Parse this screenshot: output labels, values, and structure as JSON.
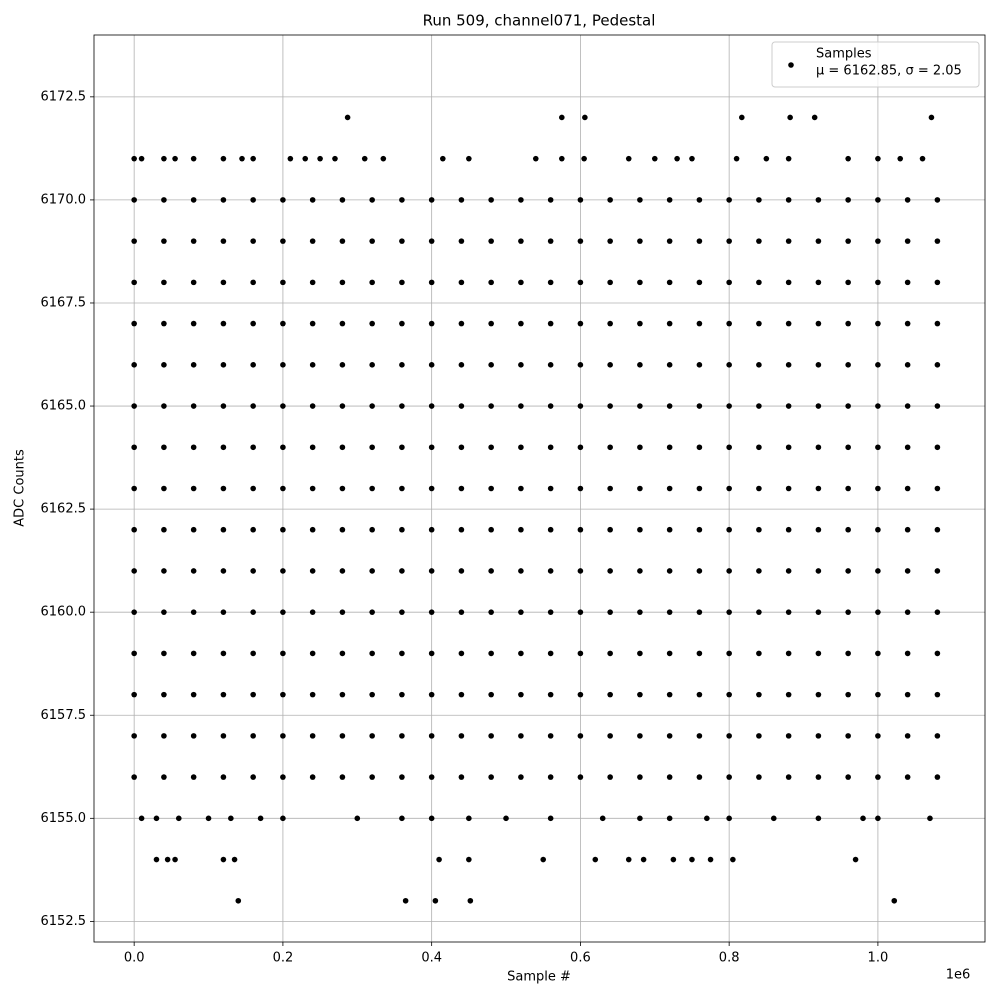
{
  "chart_data": {
    "type": "scatter",
    "title": "Run 509, channel071, Pedestal",
    "x_label": "Sample #",
    "y_label": "ADC Counts",
    "x_offset_label": "1e6",
    "legend_note": "μ = 6162.85, σ = 2.05",
    "legend": "upper right",
    "grid": true,
    "xlim": [
      -0.054,
      1.144
    ],
    "ylim": [
      6152.0,
      6174.0
    ],
    "xticks": [
      {
        "value": 0,
        "label": "0.0"
      },
      0.2,
      0.4,
      0.6,
      0.8,
      {
        "value": 1,
        "label": "1.0"
      }
    ],
    "yticks": [
      6152.5,
      {
        "value": 6155,
        "label": "6155.0"
      },
      6157.5,
      {
        "value": 6160,
        "label": "6160.0"
      },
      6162.5,
      {
        "value": 6165,
        "label": "6165.0"
      },
      6167.5,
      {
        "value": 6170,
        "label": "6170.0"
      },
      6172.5
    ],
    "series": [
      {
        "name": "Samples",
        "color": "#000000",
        "x": [
          0.287,
          0.575,
          0.606,
          0.817,
          0.882,
          0.915,
          1.072,
          0,
          0.01,
          0.04,
          0.055,
          0.08,
          0.12,
          0.145,
          0.16,
          0.21,
          0.23,
          0.25,
          0.27,
          0.31,
          0.335,
          0.415,
          0.45,
          0.54,
          0.575,
          0.605,
          0.665,
          0.7,
          0.73,
          0.75,
          0.81,
          0.85,
          0.88,
          0.96,
          1.0,
          1.03,
          1.06,
          0,
          0.04,
          0.08,
          0.12,
          0.16,
          0.2,
          0.24,
          0.28,
          0.32,
          0.36,
          0.4,
          0.44,
          0.48,
          0.52,
          0.56,
          0.6,
          0.64,
          0.68,
          0.72,
          0.76,
          0.8,
          0.84,
          0.88,
          0.92,
          0.96,
          1.0,
          1.04,
          1.08,
          0,
          0.04,
          0.08,
          0.12,
          0.16,
          0.2,
          0.24,
          0.28,
          0.32,
          0.36,
          0.4,
          0.44,
          0.48,
          0.52,
          0.56,
          0.6,
          0.64,
          0.68,
          0.72,
          0.76,
          0.8,
          0.84,
          0.88,
          0.92,
          0.96,
          1.0,
          1.04,
          1.08,
          0,
          0.04,
          0.08,
          0.12,
          0.16,
          0.2,
          0.24,
          0.28,
          0.32,
          0.36,
          0.4,
          0.44,
          0.48,
          0.52,
          0.56,
          0.6,
          0.64,
          0.68,
          0.72,
          0.76,
          0.8,
          0.84,
          0.88,
          0.92,
          0.96,
          1.0,
          1.04,
          1.08,
          0,
          0.04,
          0.08,
          0.12,
          0.16,
          0.2,
          0.24,
          0.28,
          0.32,
          0.36,
          0.4,
          0.44,
          0.48,
          0.52,
          0.56,
          0.6,
          0.64,
          0.68,
          0.72,
          0.76,
          0.8,
          0.84,
          0.88,
          0.92,
          0.96,
          1.0,
          1.04,
          1.08,
          0,
          0.04,
          0.08,
          0.12,
          0.16,
          0.2,
          0.24,
          0.28,
          0.32,
          0.36,
          0.4,
          0.44,
          0.48,
          0.52,
          0.56,
          0.6,
          0.64,
          0.68,
          0.72,
          0.76,
          0.8,
          0.84,
          0.88,
          0.92,
          0.96,
          1.0,
          1.04,
          1.08,
          0,
          0.04,
          0.08,
          0.12,
          0.16,
          0.2,
          0.24,
          0.28,
          0.32,
          0.36,
          0.4,
          0.44,
          0.48,
          0.52,
          0.56,
          0.6,
          0.64,
          0.68,
          0.72,
          0.76,
          0.8,
          0.84,
          0.88,
          0.92,
          0.96,
          1.0,
          1.04,
          1.08,
          0,
          0.04,
          0.08,
          0.12,
          0.16,
          0.2,
          0.24,
          0.28,
          0.32,
          0.36,
          0.4,
          0.44,
          0.48,
          0.52,
          0.56,
          0.6,
          0.64,
          0.68,
          0.72,
          0.76,
          0.8,
          0.84,
          0.88,
          0.92,
          0.96,
          1.0,
          1.04,
          1.08,
          0,
          0.04,
          0.08,
          0.12,
          0.16,
          0.2,
          0.24,
          0.28,
          0.32,
          0.36,
          0.4,
          0.44,
          0.48,
          0.52,
          0.56,
          0.6,
          0.64,
          0.68,
          0.72,
          0.76,
          0.8,
          0.84,
          0.88,
          0.92,
          0.96,
          1.0,
          1.04,
          1.08,
          0,
          0.04,
          0.08,
          0.12,
          0.16,
          0.2,
          0.24,
          0.28,
          0.32,
          0.36,
          0.4,
          0.44,
          0.48,
          0.52,
          0.56,
          0.6,
          0.64,
          0.68,
          0.72,
          0.76,
          0.8,
          0.84,
          0.88,
          0.92,
          0.96,
          1.0,
          1.04,
          1.08,
          0,
          0.04,
          0.08,
          0.12,
          0.16,
          0.2,
          0.24,
          0.28,
          0.32,
          0.36,
          0.4,
          0.44,
          0.48,
          0.52,
          0.56,
          0.6,
          0.64,
          0.68,
          0.72,
          0.76,
          0.8,
          0.84,
          0.88,
          0.92,
          0.96,
          1.0,
          1.04,
          1.08,
          0,
          0.04,
          0.08,
          0.12,
          0.16,
          0.2,
          0.24,
          0.28,
          0.32,
          0.36,
          0.4,
          0.44,
          0.48,
          0.52,
          0.56,
          0.6,
          0.64,
          0.68,
          0.72,
          0.76,
          0.8,
          0.84,
          0.88,
          0.92,
          0.96,
          1.0,
          1.04,
          1.08,
          0,
          0.04,
          0.08,
          0.12,
          0.16,
          0.2,
          0.24,
          0.28,
          0.32,
          0.36,
          0.4,
          0.44,
          0.48,
          0.52,
          0.56,
          0.6,
          0.64,
          0.68,
          0.72,
          0.76,
          0.8,
          0.84,
          0.88,
          0.92,
          0.96,
          1.0,
          1.04,
          1.08,
          0,
          0.04,
          0.08,
          0.12,
          0.16,
          0.2,
          0.24,
          0.28,
          0.32,
          0.36,
          0.4,
          0.44,
          0.48,
          0.52,
          0.56,
          0.6,
          0.64,
          0.68,
          0.72,
          0.76,
          0.8,
          0.84,
          0.88,
          0.92,
          0.96,
          1.0,
          1.04,
          1.08,
          0,
          0.04,
          0.08,
          0.12,
          0.16,
          0.2,
          0.24,
          0.28,
          0.32,
          0.36,
          0.4,
          0.44,
          0.48,
          0.52,
          0.56,
          0.6,
          0.64,
          0.68,
          0.72,
          0.76,
          0.8,
          0.84,
          0.88,
          0.92,
          0.96,
          1.0,
          1.04,
          1.08,
          0,
          0.04,
          0.08,
          0.12,
          0.16,
          0.2,
          0.24,
          0.28,
          0.32,
          0.36,
          0.4,
          0.44,
          0.48,
          0.52,
          0.56,
          0.6,
          0.64,
          0.68,
          0.72,
          0.76,
          0.8,
          0.84,
          0.88,
          0.92,
          0.96,
          1.0,
          1.04,
          1.08,
          0.01,
          0.03,
          0.06,
          0.1,
          0.13,
          0.17,
          0.2,
          0.3,
          0.36,
          0.4,
          0.45,
          0.5,
          0.56,
          0.63,
          0.68,
          0.72,
          0.77,
          0.8,
          0.86,
          0.92,
          0.98,
          1.0,
          1.07,
          0.03,
          0.045,
          0.055,
          0.12,
          0.135,
          0.41,
          0.45,
          0.55,
          0.62,
          0.665,
          0.685,
          0.725,
          0.75,
          0.775,
          0.805,
          0.97,
          0.14,
          0.365,
          0.405,
          0.452,
          1.022
        ],
        "values": [
          6172,
          6172,
          6172,
          6172,
          6172,
          6172,
          6172,
          6171,
          6171,
          6171,
          6171,
          6171,
          6171,
          6171,
          6171,
          6171,
          6171,
          6171,
          6171,
          6171,
          6171,
          6171,
          6171,
          6171,
          6171,
          6171,
          6171,
          6171,
          6171,
          6171,
          6171,
          6171,
          6171,
          6171,
          6171,
          6171,
          6171,
          6170,
          6170,
          6170,
          6170,
          6170,
          6170,
          6170,
          6170,
          6170,
          6170,
          6170,
          6170,
          6170,
          6170,
          6170,
          6170,
          6170,
          6170,
          6170,
          6170,
          6170,
          6170,
          6170,
          6170,
          6170,
          6170,
          6170,
          6170,
          6169,
          6169,
          6169,
          6169,
          6169,
          6169,
          6169,
          6169,
          6169,
          6169,
          6169,
          6169,
          6169,
          6169,
          6169,
          6169,
          6169,
          6169,
          6169,
          6169,
          6169,
          6169,
          6169,
          6169,
          6169,
          6169,
          6169,
          6169,
          6168,
          6168,
          6168,
          6168,
          6168,
          6168,
          6168,
          6168,
          6168,
          6168,
          6168,
          6168,
          6168,
          6168,
          6168,
          6168,
          6168,
          6168,
          6168,
          6168,
          6168,
          6168,
          6168,
          6168,
          6168,
          6168,
          6168,
          6168,
          6167,
          6167,
          6167,
          6167,
          6167,
          6167,
          6167,
          6167,
          6167,
          6167,
          6167,
          6167,
          6167,
          6167,
          6167,
          6167,
          6167,
          6167,
          6167,
          6167,
          6167,
          6167,
          6167,
          6167,
          6167,
          6167,
          6167,
          6167,
          6166,
          6166,
          6166,
          6166,
          6166,
          6166,
          6166,
          6166,
          6166,
          6166,
          6166,
          6166,
          6166,
          6166,
          6166,
          6166,
          6166,
          6166,
          6166,
          6166,
          6166,
          6166,
          6166,
          6166,
          6166,
          6166,
          6166,
          6166,
          6165,
          6165,
          6165,
          6165,
          6165,
          6165,
          6165,
          6165,
          6165,
          6165,
          6165,
          6165,
          6165,
          6165,
          6165,
          6165,
          6165,
          6165,
          6165,
          6165,
          6165,
          6165,
          6165,
          6165,
          6165,
          6165,
          6165,
          6165,
          6164,
          6164,
          6164,
          6164,
          6164,
          6164,
          6164,
          6164,
          6164,
          6164,
          6164,
          6164,
          6164,
          6164,
          6164,
          6164,
          6164,
          6164,
          6164,
          6164,
          6164,
          6164,
          6164,
          6164,
          6164,
          6164,
          6164,
          6164,
          6163,
          6163,
          6163,
          6163,
          6163,
          6163,
          6163,
          6163,
          6163,
          6163,
          6163,
          6163,
          6163,
          6163,
          6163,
          6163,
          6163,
          6163,
          6163,
          6163,
          6163,
          6163,
          6163,
          6163,
          6163,
          6163,
          6163,
          6163,
          6162,
          6162,
          6162,
          6162,
          6162,
          6162,
          6162,
          6162,
          6162,
          6162,
          6162,
          6162,
          6162,
          6162,
          6162,
          6162,
          6162,
          6162,
          6162,
          6162,
          6162,
          6162,
          6162,
          6162,
          6162,
          6162,
          6162,
          6162,
          6161,
          6161,
          6161,
          6161,
          6161,
          6161,
          6161,
          6161,
          6161,
          6161,
          6161,
          6161,
          6161,
          6161,
          6161,
          6161,
          6161,
          6161,
          6161,
          6161,
          6161,
          6161,
          6161,
          6161,
          6161,
          6161,
          6161,
          6161,
          6160,
          6160,
          6160,
          6160,
          6160,
          6160,
          6160,
          6160,
          6160,
          6160,
          6160,
          6160,
          6160,
          6160,
          6160,
          6160,
          6160,
          6160,
          6160,
          6160,
          6160,
          6160,
          6160,
          6160,
          6160,
          6160,
          6160,
          6160,
          6159,
          6159,
          6159,
          6159,
          6159,
          6159,
          6159,
          6159,
          6159,
          6159,
          6159,
          6159,
          6159,
          6159,
          6159,
          6159,
          6159,
          6159,
          6159,
          6159,
          6159,
          6159,
          6159,
          6159,
          6159,
          6159,
          6159,
          6159,
          6158,
          6158,
          6158,
          6158,
          6158,
          6158,
          6158,
          6158,
          6158,
          6158,
          6158,
          6158,
          6158,
          6158,
          6158,
          6158,
          6158,
          6158,
          6158,
          6158,
          6158,
          6158,
          6158,
          6158,
          6158,
          6158,
          6158,
          6158,
          6157,
          6157,
          6157,
          6157,
          6157,
          6157,
          6157,
          6157,
          6157,
          6157,
          6157,
          6157,
          6157,
          6157,
          6157,
          6157,
          6157,
          6157,
          6157,
          6157,
          6157,
          6157,
          6157,
          6157,
          6157,
          6157,
          6157,
          6157,
          6156,
          6156,
          6156,
          6156,
          6156,
          6156,
          6156,
          6156,
          6156,
          6156,
          6156,
          6156,
          6156,
          6156,
          6156,
          6156,
          6156,
          6156,
          6156,
          6156,
          6156,
          6156,
          6156,
          6156,
          6156,
          6156,
          6156,
          6156,
          6155,
          6155,
          6155,
          6155,
          6155,
          6155,
          6155,
          6155,
          6155,
          6155,
          6155,
          6155,
          6155,
          6155,
          6155,
          6155,
          6155,
          6155,
          6155,
          6155,
          6155,
          6155,
          6155,
          6154,
          6154,
          6154,
          6154,
          6154,
          6154,
          6154,
          6154,
          6154,
          6154,
          6154,
          6154,
          6154,
          6154,
          6154,
          6154,
          6153,
          6153,
          6153,
          6153,
          6153
        ]
      }
    ]
  }
}
